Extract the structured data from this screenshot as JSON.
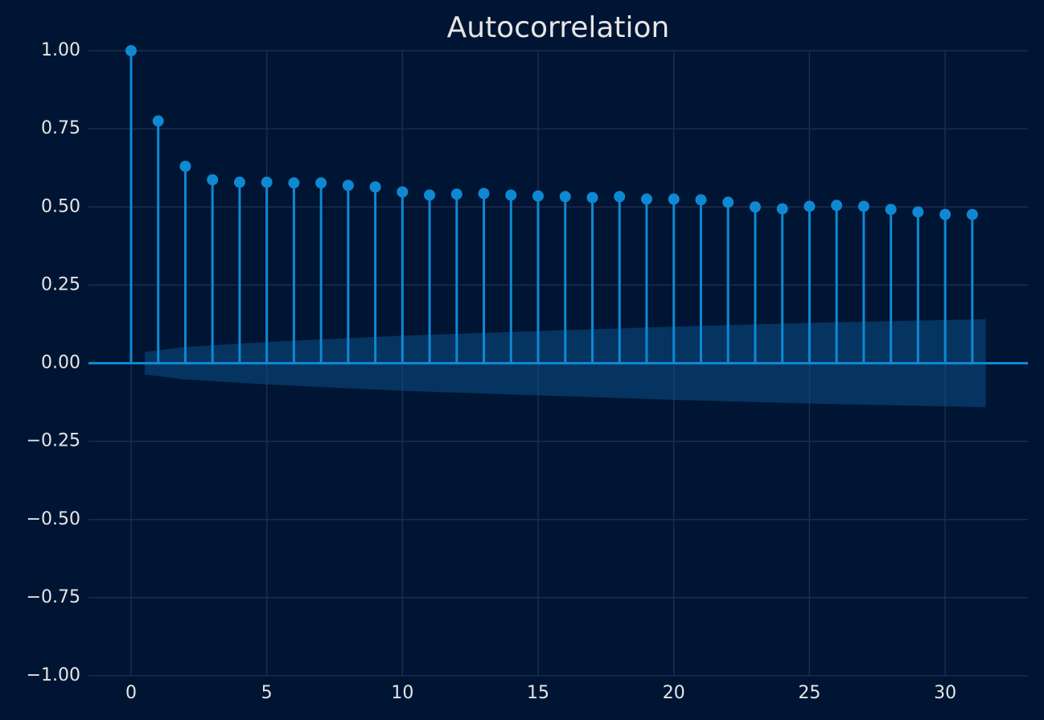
{
  "chart_data": {
    "type": "stem",
    "title": "Autocorrelation",
    "x": [
      0,
      1,
      2,
      3,
      4,
      5,
      6,
      7,
      8,
      9,
      10,
      11,
      12,
      13,
      14,
      15,
      16,
      17,
      18,
      19,
      20,
      21,
      22,
      23,
      24,
      25,
      26,
      27,
      28,
      29,
      30,
      31
    ],
    "values": [
      1.0,
      0.775,
      0.63,
      0.587,
      0.579,
      0.579,
      0.577,
      0.577,
      0.569,
      0.564,
      0.548,
      0.538,
      0.541,
      0.543,
      0.538,
      0.535,
      0.533,
      0.53,
      0.533,
      0.525,
      0.525,
      0.523,
      0.515,
      0.5,
      0.494,
      0.502,
      0.505,
      0.502,
      0.492,
      0.484,
      0.476,
      0.476
    ],
    "color": "#0f88d3",
    "band": {
      "x": [
        0.5,
        2,
        5,
        10,
        15,
        20,
        25,
        31.5
      ],
      "upper": [
        0.036,
        0.052,
        0.068,
        0.088,
        0.103,
        0.117,
        0.129,
        0.141
      ],
      "lower": [
        -0.036,
        -0.052,
        -0.068,
        -0.088,
        -0.103,
        -0.117,
        -0.129,
        -0.141
      ],
      "color": "#0a5a96"
    },
    "hline": 0,
    "xlim": [
      -1.57,
      33.05
    ],
    "ylim": [
      -1.0,
      1.0
    ],
    "xticks": [
      0,
      5,
      10,
      15,
      20,
      25,
      30
    ],
    "yticks": [
      {
        "value": -1.0,
        "label": "−1.00"
      },
      {
        "value": -0.75,
        "label": "−0.75"
      },
      {
        "value": -0.5,
        "label": "−0.50"
      },
      {
        "value": -0.25,
        "label": "−0.25"
      },
      {
        "value": 0,
        "label": "0.00"
      },
      {
        "value": 0.25,
        "label": "0.25"
      },
      {
        "value": 0.5,
        "label": "0.50"
      },
      {
        "value": 0.75,
        "label": "0.75"
      },
      {
        "value": 1.0,
        "label": "1.00"
      }
    ],
    "grid": true
  }
}
